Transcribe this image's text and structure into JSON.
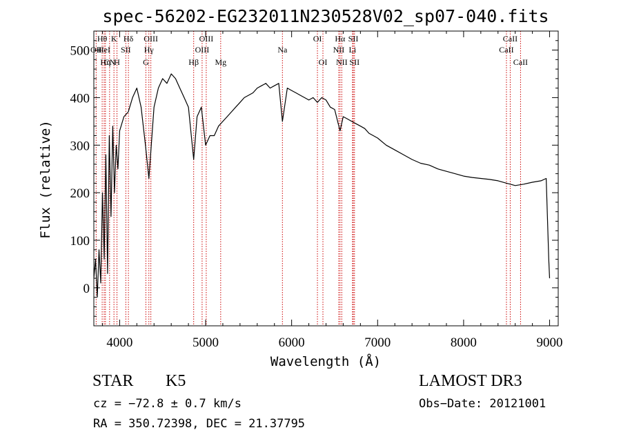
{
  "chart_data": {
    "type": "line",
    "title": "spec-56202-EG232011N230528V02_sp07-040.fits",
    "xlabel": "Wavelength (Å)",
    "ylabel": "Flux (relative)",
    "xlim": [
      3700,
      9100
    ],
    "ylim": [
      -80,
      540
    ],
    "x_ticks": [
      4000,
      5000,
      6000,
      7000,
      8000,
      9000
    ],
    "y_ticks": [
      0,
      100,
      200,
      300,
      400,
      500
    ],
    "x_tick_labels": [
      "4000",
      "5000",
      "6000",
      "7000",
      "8000",
      "9000"
    ],
    "y_tick_labels": [
      "0",
      "100",
      "200",
      "300",
      "400",
      "500"
    ],
    "series": [
      {
        "name": "flux",
        "x": [
          3700,
          3720,
          3740,
          3760,
          3780,
          3800,
          3820,
          3840,
          3860,
          3880,
          3900,
          3920,
          3940,
          3960,
          3980,
          4000,
          4050,
          4100,
          4150,
          4200,
          4250,
          4300,
          4340,
          4400,
          4450,
          4500,
          4550,
          4600,
          4650,
          4700,
          4750,
          4800,
          4861,
          4900,
          4950,
          5000,
          5050,
          5100,
          5150,
          5200,
          5250,
          5300,
          5350,
          5400,
          5450,
          5500,
          5550,
          5600,
          5650,
          5700,
          5750,
          5800,
          5850,
          5893,
          5950,
          6000,
          6050,
          6100,
          6150,
          6200,
          6250,
          6300,
          6350,
          6400,
          6450,
          6500,
          6563,
          6600,
          6650,
          6700,
          6750,
          6800,
          6850,
          6900,
          6950,
          7000,
          7100,
          7200,
          7300,
          7400,
          7500,
          7600,
          7700,
          7800,
          7900,
          8000,
          8100,
          8200,
          8300,
          8400,
          8500,
          8542,
          8600,
          8700,
          8800,
          8900,
          8960,
          8990,
          9000
        ],
        "values": [
          20,
          60,
          -20,
          80,
          10,
          200,
          60,
          280,
          30,
          320,
          150,
          340,
          200,
          300,
          250,
          330,
          360,
          370,
          400,
          420,
          380,
          300,
          230,
          380,
          420,
          440,
          430,
          450,
          440,
          420,
          400,
          380,
          270,
          360,
          380,
          300,
          320,
          320,
          340,
          350,
          360,
          370,
          380,
          390,
          400,
          405,
          410,
          420,
          425,
          430,
          420,
          425,
          430,
          350,
          420,
          415,
          410,
          405,
          400,
          395,
          400,
          390,
          400,
          395,
          380,
          375,
          330,
          360,
          355,
          350,
          345,
          340,
          335,
          325,
          320,
          315,
          300,
          290,
          280,
          270,
          262,
          258,
          250,
          245,
          240,
          235,
          232,
          230,
          228,
          225,
          220,
          218,
          215,
          218,
          222,
          225,
          230,
          60,
          20
        ]
      }
    ],
    "line_labels": [
      {
        "label": "Hθ",
        "x": 3797,
        "row": 1
      },
      {
        "label": "OII",
        "x": 3727,
        "row": 2
      },
      {
        "label": "HeI",
        "x": 3820,
        "row": 2
      },
      {
        "label": "Hη",
        "x": 3835,
        "row": 3
      },
      {
        "label": "CN",
        "x": 3883,
        "row": 3
      },
      {
        "label": "K",
        "x": 3934,
        "row": 1
      },
      {
        "label": "H",
        "x": 3969,
        "row": 3
      },
      {
        "label": "SII",
        "x": 4072,
        "row": 2
      },
      {
        "label": "Hδ",
        "x": 4102,
        "row": 1
      },
      {
        "label": "G",
        "x": 4305,
        "row": 3
      },
      {
        "label": "Hγ",
        "x": 4340,
        "row": 2
      },
      {
        "label": "OIII",
        "x": 4363,
        "row": 1
      },
      {
        "label": "Hβ",
        "x": 4861,
        "row": 3
      },
      {
        "label": "OIII",
        "x": 4959,
        "row": 2
      },
      {
        "label": "OIII",
        "x": 5007,
        "row": 1
      },
      {
        "label": "Mg",
        "x": 5175,
        "row": 3
      },
      {
        "label": "Na",
        "x": 5893,
        "row": 2
      },
      {
        "label": "OI",
        "x": 6300,
        "row": 1
      },
      {
        "label": "OI",
        "x": 6364,
        "row": 3
      },
      {
        "label": "NII",
        "x": 6548,
        "row": 2
      },
      {
        "label": "Hα",
        "x": 6563,
        "row": 1
      },
      {
        "label": "NII",
        "x": 6583,
        "row": 3
      },
      {
        "label": "Li",
        "x": 6708,
        "row": 2
      },
      {
        "label": "SII",
        "x": 6717,
        "row": 1
      },
      {
        "label": "SII",
        "x": 6731,
        "row": 3
      },
      {
        "label": "CaII",
        "x": 8498,
        "row": 2
      },
      {
        "label": "CaII",
        "x": 8542,
        "row": 1
      },
      {
        "label": "CaII",
        "x": 8662,
        "row": 3
      }
    ]
  },
  "info": {
    "class": "STAR",
    "subclass": "K5",
    "survey": "LAMOST DR3",
    "cz": "cz = −72.8 ± 0.7 km/s",
    "obs_date": "Obs−Date: 20121001",
    "radec": "RA = 350.72398, DEC =  21.37795"
  },
  "colors": {
    "spectrum": "#000000",
    "line_markers": "#cc0000",
    "axes": "#000000"
  }
}
